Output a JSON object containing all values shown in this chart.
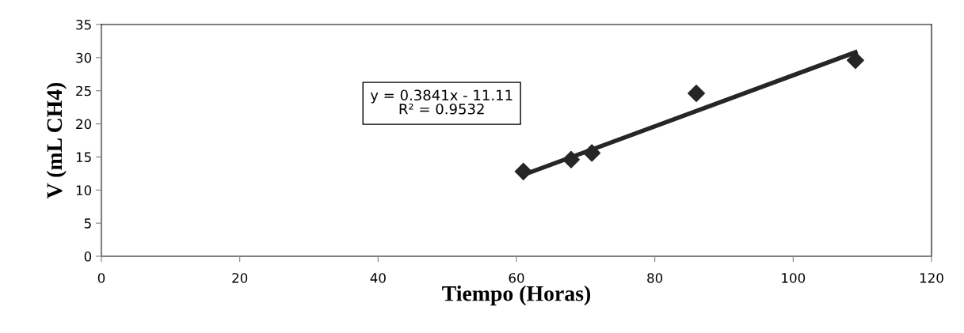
{
  "chart_data": {
    "type": "scatter",
    "xlabel": "Tiempo (Horas)",
    "ylabel": "V (mL CH4)",
    "xlim": [
      0,
      120
    ],
    "xticks": [
      0,
      20,
      40,
      60,
      80,
      100,
      120
    ],
    "ylim": [
      0,
      35
    ],
    "yticks": [
      0,
      5,
      10,
      15,
      20,
      25,
      30,
      35
    ],
    "grid": false,
    "legend": false,
    "marker": "diamond",
    "series": [
      {
        "color": "#262626",
        "x": [
          61,
          67.9,
          70.9,
          86,
          109
        ],
        "values": [
          12.8,
          14.6,
          15.6,
          24.6,
          29.6
        ]
      },
      {
        "type": "line",
        "color": "#262626",
        "marker": "none",
        "line_style": "solid",
        "x": [
          61,
          109
        ],
        "values": [
          12.3,
          30.8
        ]
      }
    ],
    "annotations": [
      "y = 0.3841x - 11.11\nR² = 0.9532"
    ]
  }
}
